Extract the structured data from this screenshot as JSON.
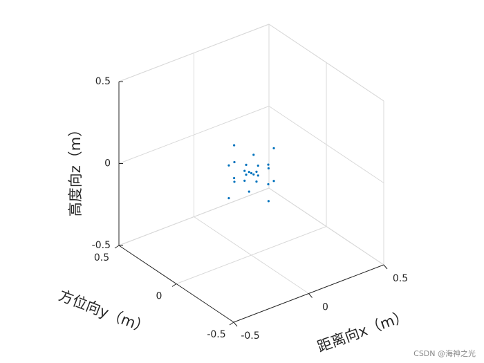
{
  "chart_data": {
    "type": "scatter3d",
    "x_label": "距离向x（m）",
    "y_label": "方位向y（m）",
    "z_label": "高度向z（m）",
    "xlim": [
      -0.5,
      0.5
    ],
    "ylim": [
      -0.5,
      0.5
    ],
    "zlim": [
      -0.5,
      0.5
    ],
    "xticks": [
      -0.5,
      0,
      0.5
    ],
    "yticks": [
      -0.5,
      0,
      0.5
    ],
    "zticks": [
      -0.5,
      0,
      0.5
    ],
    "grid": true,
    "color": "#0072bd",
    "x": [
      0.15,
      0,
      -0.15,
      0,
      0.064,
      -0.064,
      -0.064,
      0.064,
      0.045,
      0,
      -0.045,
      0,
      0,
      0.045,
      0,
      -0.045,
      0,
      0.064,
      -0.064,
      -0.064,
      0.064,
      0.15,
      0,
      -0.15,
      0
    ],
    "y": [
      0,
      0.15,
      0,
      -0.15,
      0.064,
      0.064,
      -0.064,
      -0.064,
      0,
      0.045,
      0,
      -0.045,
      0,
      0,
      0.045,
      0,
      -0.045,
      0.064,
      0.064,
      -0.064,
      -0.064,
      0,
      0.15,
      0,
      -0.15
    ],
    "z": [
      0.1,
      0.1,
      0.1,
      0.1,
      0.06,
      0.06,
      0.06,
      0.06,
      0.03,
      0.03,
      0.03,
      0.03,
      0,
      -0.03,
      -0.03,
      -0.03,
      -0.03,
      -0.06,
      -0.06,
      -0.06,
      -0.06,
      -0.1,
      -0.1,
      -0.1,
      -0.1
    ]
  },
  "watermark": "CSDN @海神之光"
}
